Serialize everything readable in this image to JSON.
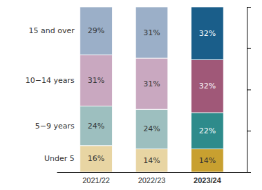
{
  "chart_data": {
    "type": "bar",
    "stacked": true,
    "data_labels": true,
    "tick_labels": "x",
    "categories": [
      "2021/22",
      "2022/23",
      "2023/24"
    ],
    "series": [
      {
        "name": "Under 5",
        "values": [
          16,
          14,
          14
        ],
        "value_labels": [
          "16%",
          "14%",
          "14%"
        ],
        "colors": [
          "#e8d5a3",
          "#e8d5a3",
          "#c8a030"
        ]
      },
      {
        "name": "5−9 years",
        "values": [
          24,
          24,
          22
        ],
        "value_labels": [
          "24%",
          "24%",
          "22%"
        ],
        "colors": [
          "#9dbfbf",
          "#9dbfbf",
          "#2e8b8b"
        ]
      },
      {
        "name": "10−14 years",
        "values": [
          31,
          31,
          32
        ],
        "value_labels": [
          "31%",
          "31%",
          "32%"
        ],
        "colors": [
          "#c9a8c0",
          "#c9a8c0",
          "#a05878"
        ]
      },
      {
        "name": "15 and over",
        "values": [
          29,
          31,
          32
        ],
        "value_labels": [
          "29%",
          "31%",
          "32%"
        ],
        "colors": [
          "#9bafc8",
          "#9bafc8",
          "#1a5e8a"
        ]
      }
    ],
    "ylim": [
      0,
      100
    ],
    "yticks": [
      0,
      25,
      50,
      75,
      100
    ]
  }
}
